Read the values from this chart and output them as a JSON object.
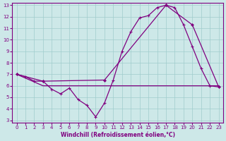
{
  "xlabel": "Windchill (Refroidissement éolien,°C)",
  "bg_color": "#cde8e8",
  "line_color": "#800080",
  "grid_color": "#a0cccc",
  "xlim": [
    -0.5,
    23.5
  ],
  "ylim": [
    2.8,
    13.2
  ],
  "xticks": [
    0,
    1,
    2,
    3,
    4,
    5,
    6,
    7,
    8,
    9,
    10,
    11,
    12,
    13,
    14,
    15,
    16,
    17,
    18,
    19,
    20,
    21,
    22,
    23
  ],
  "yticks": [
    3,
    4,
    5,
    6,
    7,
    8,
    9,
    10,
    11,
    12,
    13
  ],
  "line1_x": [
    0,
    1,
    2,
    3,
    4,
    5,
    6,
    7,
    8,
    9,
    10,
    11,
    12,
    13,
    14,
    15,
    16,
    17,
    18,
    19,
    20,
    21,
    22,
    23
  ],
  "line1_y": [
    7.0,
    6.8,
    6.4,
    6.4,
    5.7,
    5.3,
    5.8,
    4.8,
    4.3,
    3.3,
    4.5,
    6.5,
    9.0,
    10.7,
    11.9,
    12.1,
    12.8,
    13.0,
    12.8,
    11.3,
    9.4,
    7.5,
    6.0,
    5.9
  ],
  "line2_x": [
    0,
    3,
    10,
    17,
    20,
    23
  ],
  "line2_y": [
    7.0,
    6.4,
    6.5,
    13.0,
    11.3,
    5.9
  ],
  "line3_x": [
    0,
    3,
    10,
    23
  ],
  "line3_y": [
    7.0,
    6.0,
    6.0,
    6.0
  ]
}
